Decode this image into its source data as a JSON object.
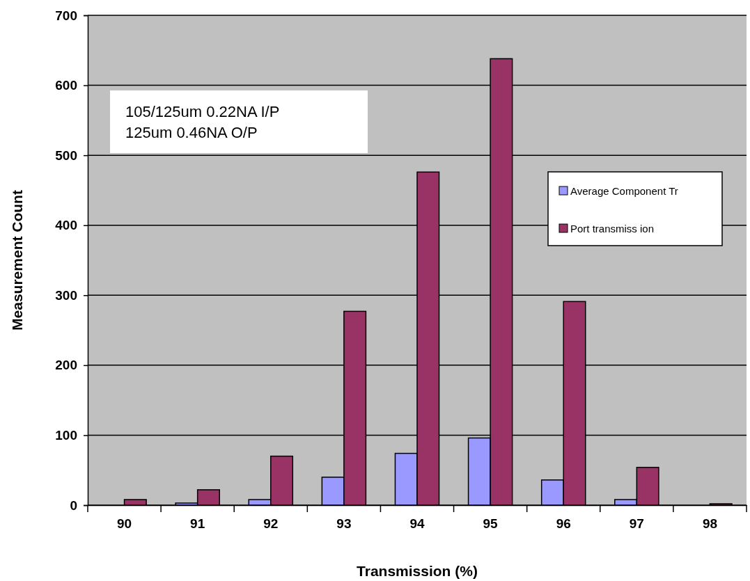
{
  "chart_data": {
    "type": "bar",
    "xlabel": "Transmission (%)",
    "ylabel": "Measurement Count",
    "categories": [
      "90",
      "91",
      "92",
      "93",
      "94",
      "95",
      "96",
      "97",
      "98"
    ],
    "series": [
      {
        "name": "Average Component Tr",
        "color": "#9999ff",
        "values": [
          0,
          3,
          8,
          40,
          74,
          96,
          36,
          8,
          0
        ]
      },
      {
        "name": "Port transmiss ion",
        "color": "#993366",
        "values": [
          8,
          22,
          70,
          277,
          476,
          638,
          291,
          54,
          2
        ]
      }
    ],
    "ylim": [
      0,
      700
    ],
    "yticks": [
      0,
      100,
      200,
      300,
      400,
      500,
      600,
      700
    ],
    "grid": "y",
    "legend": "right",
    "annotations": [
      "105/125um 0.22NA I/P\n125um 0.46NA O/P"
    ]
  }
}
